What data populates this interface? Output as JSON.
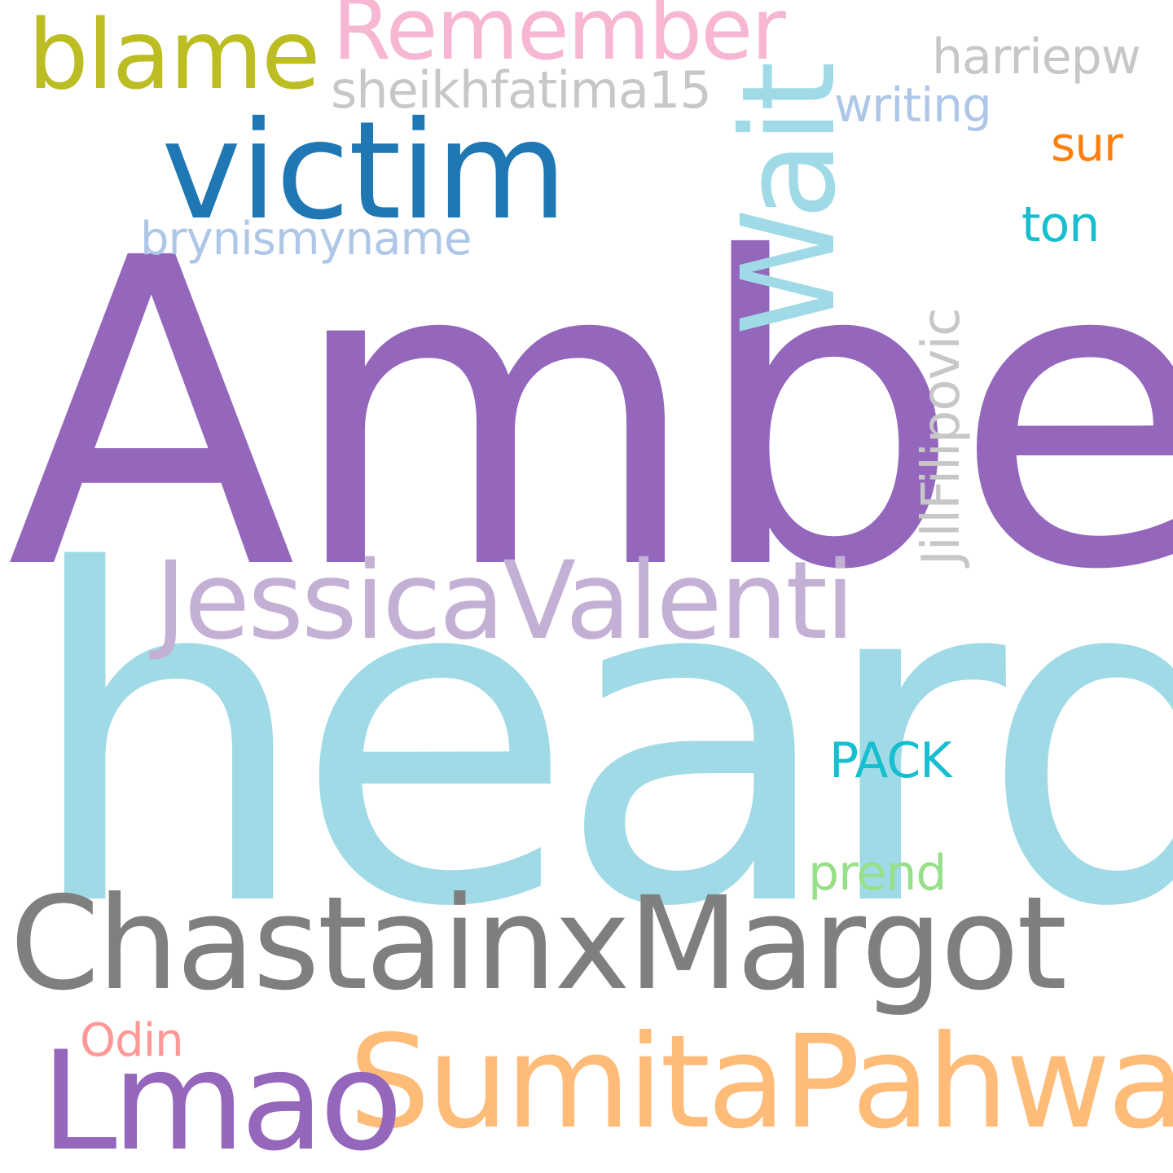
{
  "words": {
    "amber": {
      "text": "Amber",
      "color": "#9467bd"
    },
    "heard": {
      "text": "heard",
      "color": "#a0dae6"
    },
    "chastain": {
      "text": "ChastainxMargot",
      "color": "#7f7f7f"
    },
    "jessica": {
      "text": "JessicaValenti",
      "color": "#c5b0d5"
    },
    "victim": {
      "text": "victim",
      "color": "#1f77b4"
    },
    "sumita": {
      "text": "SumitaPahwa",
      "color": "#ffbb78"
    },
    "lmao": {
      "text": "Lmao",
      "color": "#9467bd"
    },
    "blame": {
      "text": "blame",
      "color": "#bcbd22"
    },
    "remember": {
      "text": "Remember",
      "color": "#f7b6d2"
    },
    "wait": {
      "text": "Wait",
      "color": "#a0dae6"
    },
    "brynismyname": {
      "text": "brynismyname",
      "color": "#aec7e8"
    },
    "sheikh": {
      "text": "sheikhfatima15",
      "color": "#c7c7c7"
    },
    "writing": {
      "text": "writing",
      "color": "#aec7e8"
    },
    "harriepw": {
      "text": "harriepw",
      "color": "#c7c7c7"
    },
    "sur": {
      "text": "sur",
      "color": "#ff7f0e"
    },
    "ton": {
      "text": "ton",
      "color": "#17becf"
    },
    "jill": {
      "text": "JillFilipovic",
      "color": "#c7c7c7"
    },
    "pack": {
      "text": "PACK",
      "color": "#17becf"
    },
    "prend": {
      "text": "prend",
      "color": "#98df8a"
    },
    "odin": {
      "text": "Odin",
      "color": "#ff9896"
    }
  }
}
